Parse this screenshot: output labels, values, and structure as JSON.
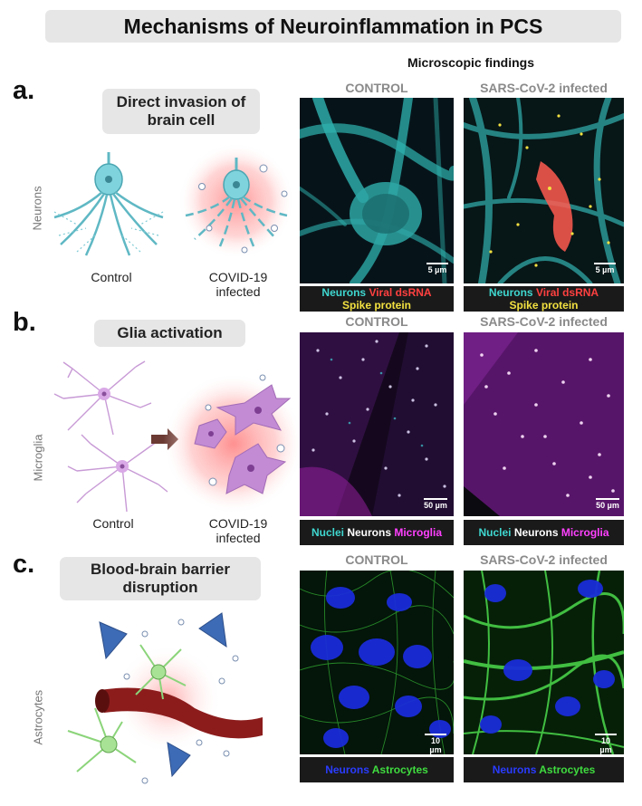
{
  "title": "Mechanisms of Neuroinflammation in PCS",
  "microscopic_heading": "Microscopic findings",
  "panels": {
    "a": {
      "letter": "a.",
      "label": "Direct invasion of brain cell",
      "cell_type": "Neurons",
      "caption_control": "Control",
      "caption_infected": "COVID-19 infected",
      "img_control_title": "CONTROL",
      "img_infected_title": "SARS-CoV-2 infected",
      "scale_control": "5 µm",
      "scale_infected": "5 µm",
      "legend": {
        "neurons": "Neurons",
        "viral": "Viral dsRNA",
        "spike": "Spike protein"
      }
    },
    "b": {
      "letter": "b.",
      "label": "Glia activation",
      "cell_type": "Microglia",
      "caption_control": "Control",
      "caption_infected": "COVID-19 infected",
      "img_control_title": "CONTROL",
      "img_infected_title": "SARS-CoV-2 infected",
      "scale_control": "50 µm",
      "scale_infected": "50 µm",
      "legend": {
        "nuclei": "Nuclei",
        "neurons": "Neurons",
        "microglia": "Microglia"
      }
    },
    "c": {
      "letter": "c.",
      "label": "Blood-brain barrier disruption",
      "cell_type": "Astrocytes",
      "img_control_title": "CONTROL",
      "img_infected_title": "SARS-CoV-2 infected",
      "scale_control": "10 µm",
      "scale_infected": "10 µm",
      "legend": {
        "neurons": "Neurons",
        "astrocytes": "Astrocytes"
      }
    }
  },
  "colors": {
    "neuron_stain": "#3fd7d0",
    "viral_dsrna": "#ff4040",
    "spike_protein": "#f2e040",
    "microglia_stain": "#ff40ff",
    "astrocyte_stain": "#3fdc3f",
    "neuron_blue": "#2a3cff"
  }
}
